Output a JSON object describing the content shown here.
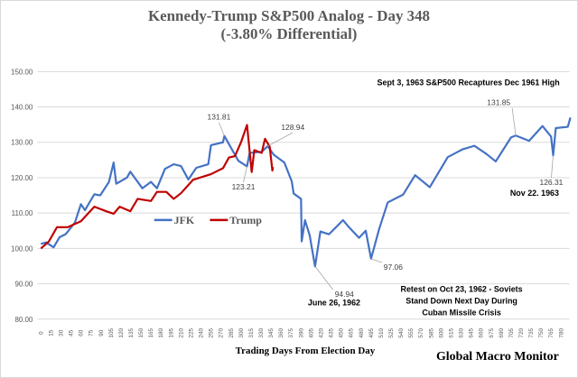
{
  "chart_data": {
    "type": "line",
    "title": "Kennedy-Trump  S&P500 Analog  - Day 348",
    "subtitle": "(-3.80% Differential)",
    "xlabel": "Trading  Days From  Election  Day",
    "ylabel": "",
    "xlim": [
      0,
      795
    ],
    "ylim": [
      80,
      150
    ],
    "yticks": [
      "80.00",
      "90.00",
      "100.00",
      "110.00",
      "120.00",
      "130.00",
      "140.00",
      "150.00"
    ],
    "xtick_step": 15,
    "xtick_max": 780,
    "grid": true,
    "legend_placement": "center-left",
    "series": [
      {
        "name": "JFK",
        "color": "#4472C4",
        "points": [
          [
            0,
            101.3
          ],
          [
            8,
            101.7
          ],
          [
            19,
            100.3
          ],
          [
            28,
            103.2
          ],
          [
            37,
            104
          ],
          [
            51,
            107.3
          ],
          [
            60,
            112.5
          ],
          [
            66,
            110.8
          ],
          [
            80,
            115.3
          ],
          [
            89,
            115
          ],
          [
            102,
            118.8
          ],
          [
            109,
            124.3
          ],
          [
            113,
            118.3
          ],
          [
            129,
            120
          ],
          [
            134,
            121.7
          ],
          [
            152,
            117
          ],
          [
            165,
            118.8
          ],
          [
            174,
            117
          ],
          [
            186,
            122.5
          ],
          [
            199,
            123.8
          ],
          [
            210,
            123.3
          ],
          [
            221,
            119.5
          ],
          [
            233,
            122.8
          ],
          [
            251,
            123.8
          ],
          [
            255,
            129.2
          ],
          [
            273,
            130
          ],
          [
            275,
            131.8
          ],
          [
            296,
            124.8
          ],
          [
            309,
            123.2
          ],
          [
            313,
            127
          ],
          [
            331,
            127.3
          ],
          [
            340,
            128.9
          ],
          [
            349,
            126.5
          ],
          [
            365,
            124.3
          ],
          [
            376,
            119
          ],
          [
            379,
            115.5
          ],
          [
            390,
            114
          ],
          [
            391,
            102
          ],
          [
            396,
            108
          ],
          [
            403,
            103.7
          ],
          [
            411,
            94.9
          ],
          [
            419,
            104.8
          ],
          [
            432,
            104
          ],
          [
            453,
            108
          ],
          [
            462,
            106
          ],
          [
            477,
            103
          ],
          [
            487,
            105
          ],
          [
            495,
            97.1
          ],
          [
            507,
            105.4
          ],
          [
            520,
            113
          ],
          [
            543,
            115.2
          ],
          [
            561,
            120.7
          ],
          [
            583,
            117.3
          ],
          [
            610,
            125.8
          ],
          [
            632,
            128
          ],
          [
            650,
            129
          ],
          [
            668,
            126.7
          ],
          [
            682,
            124.6
          ],
          [
            705,
            131.4
          ],
          [
            712,
            131.9
          ],
          [
            732,
            130.4
          ],
          [
            752,
            134.6
          ],
          [
            765,
            131.6
          ],
          [
            768,
            126.3
          ],
          [
            772,
            134
          ],
          [
            790,
            134.4
          ],
          [
            794,
            137
          ]
        ]
      },
      {
        "name": "Trump",
        "color": "#C00000",
        "points": [
          [
            0,
            100
          ],
          [
            12,
            102
          ],
          [
            24,
            106
          ],
          [
            40,
            106
          ],
          [
            60,
            107.7
          ],
          [
            80,
            111.8
          ],
          [
            98,
            110.5
          ],
          [
            109,
            109.8
          ],
          [
            118,
            111.8
          ],
          [
            134,
            110.5
          ],
          [
            145,
            114
          ],
          [
            165,
            113.4
          ],
          [
            174,
            116
          ],
          [
            188,
            116
          ],
          [
            199,
            114
          ],
          [
            210,
            115.6
          ],
          [
            228,
            119.4
          ],
          [
            255,
            121
          ],
          [
            273,
            122.7
          ],
          [
            282,
            125.7
          ],
          [
            291,
            126.1
          ],
          [
            300,
            130
          ],
          [
            309,
            134.9
          ],
          [
            316,
            121.6
          ],
          [
            320,
            127.8
          ],
          [
            331,
            127
          ],
          [
            336,
            131
          ],
          [
            343,
            128.8
          ],
          [
            347,
            122
          ],
          [
            348,
            123
          ]
        ]
      }
    ],
    "annotations": [
      {
        "id": "a1",
        "text": "131.81",
        "day": 275,
        "value": 131.81
      },
      {
        "id": "a2",
        "text": "123.21",
        "day": 309,
        "value": 123.21
      },
      {
        "id": "a3",
        "text": "128.94",
        "day": 340,
        "value": 128.94
      },
      {
        "id": "a4",
        "text": "94.94",
        "day": 411,
        "value": 94.94
      },
      {
        "id": "a5",
        "text": "97.06",
        "day": 495,
        "value": 97.06
      },
      {
        "id": "a6",
        "text": "131.85",
        "day": 712,
        "value": 131.85
      },
      {
        "id": "a7",
        "text": "126.31",
        "day": 768,
        "value": 126.31
      }
    ],
    "notes": [
      "Sept 3, 1963  S&P500 Recaptures Dec 1961 High",
      "Nov 22. 1963",
      "June 26, 1962",
      "Retest on Oct 23, 1962 - Soviets",
      "Stand Down Next Day During",
      "Cuban Missile Crisis"
    ],
    "source": "Global Macro Monitor"
  }
}
